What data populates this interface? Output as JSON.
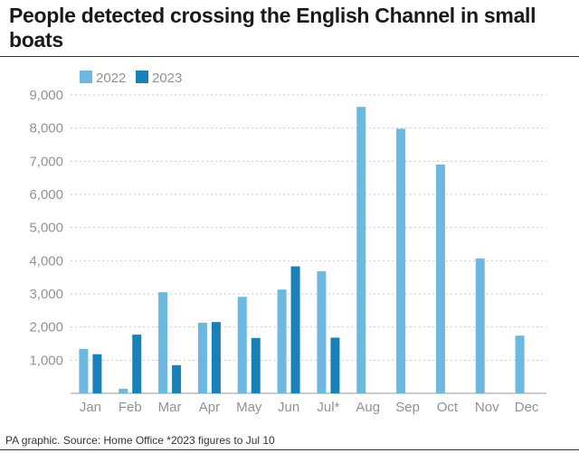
{
  "title": "People detected crossing the English Channel in small boats",
  "footer": "PA graphic. Source: Home Office *2023 figures to Jul 10",
  "colors": {
    "series_2022": "#6cb8e0",
    "series_2023": "#1a80b8",
    "grid": "#c8c8c8",
    "axis": "#9a9a9a",
    "text": "#8e9398"
  },
  "chart_data": {
    "type": "bar",
    "categories": [
      "Jan",
      "Feb",
      "Mar",
      "Apr",
      "May",
      "Jun",
      "Jul*",
      "Aug",
      "Sep",
      "Oct",
      "Nov",
      "Dec"
    ],
    "series": [
      {
        "name": "2022",
        "values": [
          1340,
          140,
          3050,
          2130,
          2910,
          3130,
          3680,
          8640,
          7980,
          6900,
          4070,
          1740
        ]
      },
      {
        "name": "2023",
        "values": [
          1180,
          1770,
          850,
          2150,
          1670,
          3830,
          1680,
          null,
          null,
          null,
          null,
          null
        ]
      }
    ],
    "yticks": [
      "1,000",
      "2,000",
      "3,000",
      "4,000",
      "5,000",
      "6,000",
      "7,000",
      "8,000",
      "9,000"
    ],
    "ylim": [
      0,
      9000
    ],
    "grid": true,
    "legend_position": "top-left"
  }
}
